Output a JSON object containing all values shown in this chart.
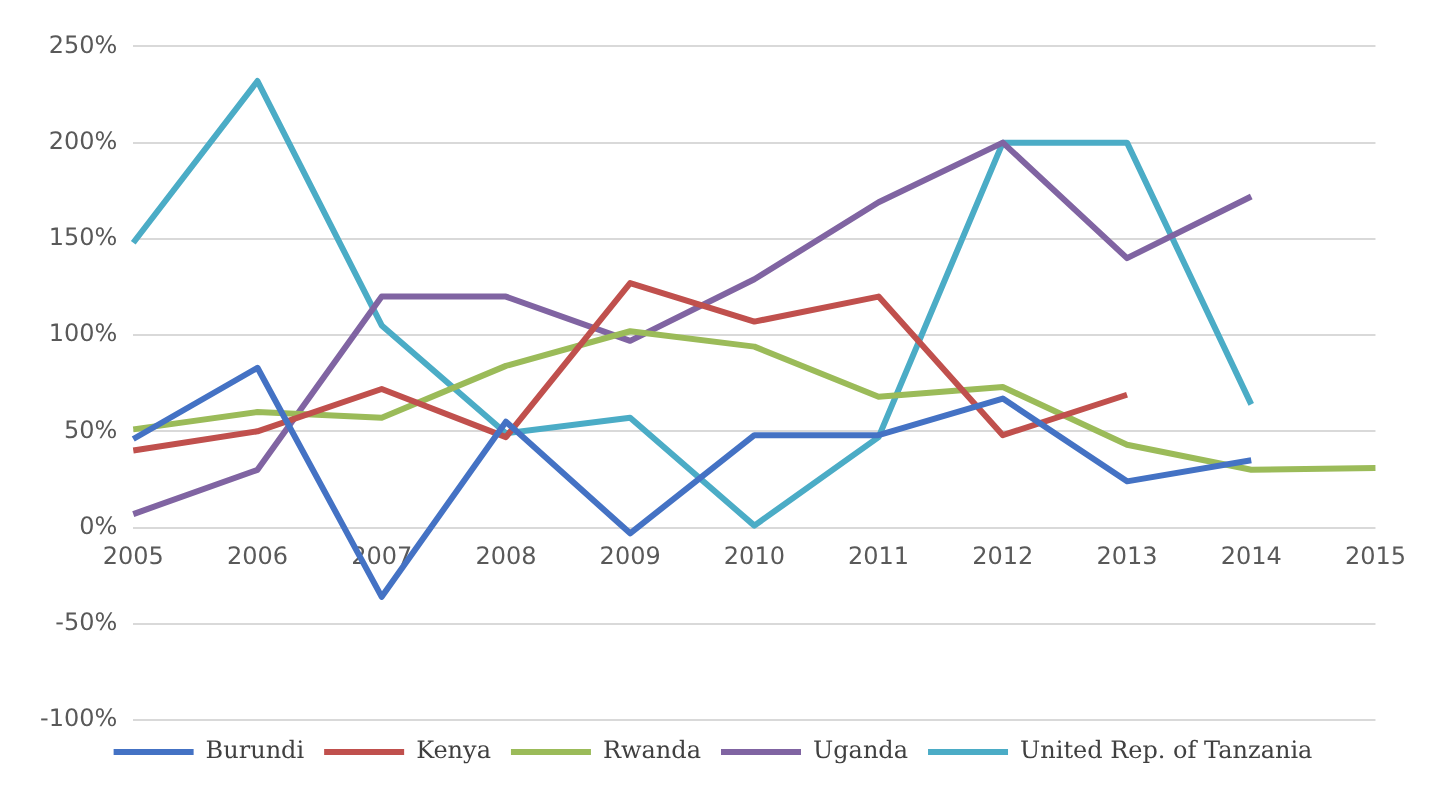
{
  "chart_data": {
    "type": "line",
    "categories": [
      "2005",
      "2006",
      "2007",
      "2008",
      "2009",
      "2010",
      "2011",
      "2012",
      "2013",
      "2014",
      "2015"
    ],
    "series": [
      {
        "name": "Burundi",
        "color": "#4472c4",
        "values": [
          46,
          83,
          -36,
          55,
          -3,
          48,
          48,
          67,
          24,
          35,
          null
        ]
      },
      {
        "name": "Kenya",
        "color": "#c0504d",
        "values": [
          40,
          50,
          72,
          47,
          127,
          107,
          120,
          48,
          69,
          null,
          null
        ]
      },
      {
        "name": "Rwanda",
        "color": "#9bbb59",
        "values": [
          51,
          60,
          57,
          84,
          102,
          94,
          68,
          73,
          43,
          30,
          31
        ]
      },
      {
        "name": "Uganda",
        "color": "#8064a2",
        "values": [
          7,
          30,
          120,
          120,
          97,
          129,
          169,
          200,
          140,
          172,
          null
        ]
      },
      {
        "name": "United Rep. of Tanzania",
        "color": "#4bacc6",
        "values": [
          148,
          232,
          105,
          49,
          57,
          1,
          47,
          200,
          200,
          64,
          null
        ]
      }
    ],
    "ylim": [
      -100,
      250
    ],
    "yticks": [
      {
        "value": -100,
        "label": "-100%"
      },
      {
        "value": -50,
        "label": "-50%"
      },
      {
        "value": 0,
        "label": "0%"
      },
      {
        "value": 50,
        "label": "50%"
      },
      {
        "value": 100,
        "label": "100%"
      },
      {
        "value": 150,
        "label": "150%"
      },
      {
        "value": 200,
        "label": "200%"
      },
      {
        "value": 250,
        "label": "250%"
      }
    ],
    "grid": "y",
    "legend": "bottom",
    "marker": "none",
    "line_style": "solid"
  }
}
